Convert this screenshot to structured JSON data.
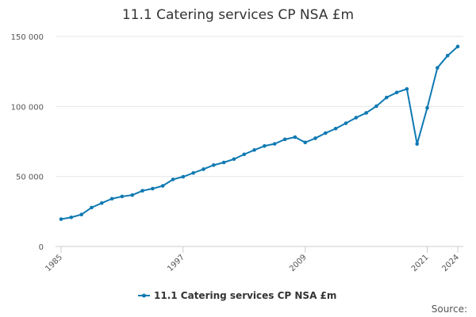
{
  "chart_data": {
    "type": "line",
    "title": "11.1 Catering services CP NSA £m",
    "xlabel": "",
    "ylabel": "",
    "x": [
      1985,
      1986,
      1987,
      1988,
      1989,
      1990,
      1991,
      1992,
      1993,
      1994,
      1995,
      1996,
      1997,
      1998,
      1999,
      2000,
      2001,
      2002,
      2003,
      2004,
      2005,
      2006,
      2007,
      2008,
      2009,
      2010,
      2011,
      2012,
      2013,
      2014,
      2015,
      2016,
      2017,
      2018,
      2019,
      2020,
      2021,
      2022,
      2023,
      2024
    ],
    "x_tick_labels": [
      "1985",
      "1997",
      "2009",
      "2021",
      "2024"
    ],
    "x_tick_values": [
      1985,
      1997,
      2009,
      2021,
      2024
    ],
    "ylim": [
      0,
      150000
    ],
    "y_ticks": [
      0,
      50000,
      100000,
      150000
    ],
    "y_tick_labels": [
      "0",
      "50 000",
      "100 000",
      "150 000"
    ],
    "grid": true,
    "legend_position": "bottom",
    "series": [
      {
        "name": "11.1 Catering services CP NSA £m",
        "color": "#0e79b2",
        "values": [
          19500,
          20800,
          22800,
          27800,
          31000,
          34100,
          35700,
          36700,
          39800,
          41300,
          43300,
          47900,
          49800,
          52500,
          55200,
          58100,
          60000,
          62400,
          65800,
          68900,
          71800,
          73300,
          76500,
          78100,
          74300,
          77300,
          81000,
          84200,
          88000,
          92000,
          95400,
          100200,
          106400,
          110000,
          112500,
          73200,
          99000,
          127600,
          136300,
          142800
        ]
      }
    ],
    "source_label": "Source:"
  }
}
